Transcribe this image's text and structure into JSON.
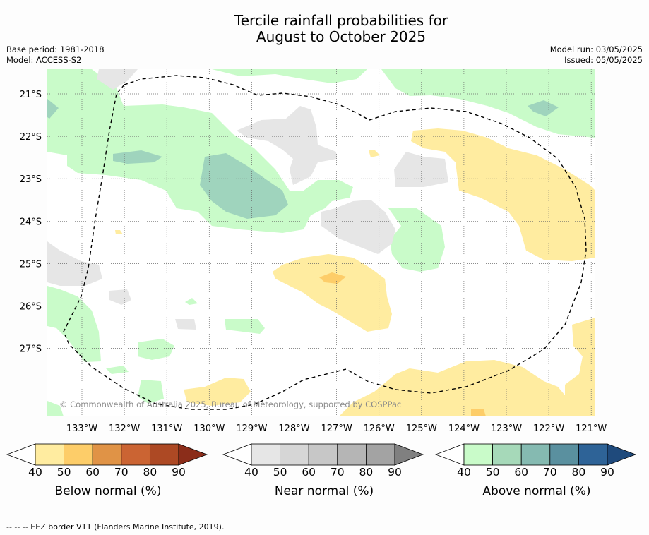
{
  "title_line1": "Tercile rainfall probabilities for",
  "title_line2": "August to October 2025",
  "meta_left": {
    "base_period": "Base period: 1981-2018",
    "model": "Model: ACCESS-S2"
  },
  "meta_right": {
    "model_run": "Model run: 03/05/2025",
    "issued": "Issued: 05/05/2025"
  },
  "copyright": "© Commonwealth of Australia 2025, Bureau of Meteorology, supported by COSPPac",
  "map": {
    "lon_labels": [
      "133°W",
      "132°W",
      "131°W",
      "130°W",
      "129°W",
      "128°W",
      "127°W",
      "126°W",
      "125°W",
      "124°W",
      "123°W",
      "122°W",
      "121°W"
    ],
    "lat_labels": [
      "21°S",
      "22°S",
      "23°S",
      "24°S",
      "25°S",
      "26°S",
      "27°S"
    ],
    "colors": {
      "above_40": "#c9fbc9",
      "above_50": "#9fd4bd",
      "near_40": "#e6e6e6",
      "below_40": "#ffeca0",
      "below_50": "#fdcd69"
    }
  },
  "colorbars": [
    {
      "label": "Below normal (%)",
      "ticks": [
        "40",
        "50",
        "60",
        "70",
        "80",
        "90"
      ],
      "colors": [
        "#ffffff",
        "#ffeca0",
        "#fdcd69",
        "#e09346",
        "#cb6433",
        "#ad4924",
        "#8b2d1a"
      ]
    },
    {
      "label": "Near normal (%)",
      "ticks": [
        "40",
        "50",
        "60",
        "70",
        "80",
        "90"
      ],
      "colors": [
        "#ffffff",
        "#e6e6e6",
        "#d6d6d6",
        "#c7c7c7",
        "#b5b5b5",
        "#a3a3a3",
        "#808080"
      ]
    },
    {
      "label": "Above normal (%)",
      "ticks": [
        "40",
        "50",
        "60",
        "70",
        "80",
        "90"
      ],
      "colors": [
        "#ffffff",
        "#c9fbc9",
        "#a6d9b9",
        "#85bab1",
        "#5a909f",
        "#2e6397",
        "#1f4a7c"
      ]
    }
  ],
  "footer": "--  --  -- EEZ border V11 (Flanders Marine Institute, 2019)."
}
